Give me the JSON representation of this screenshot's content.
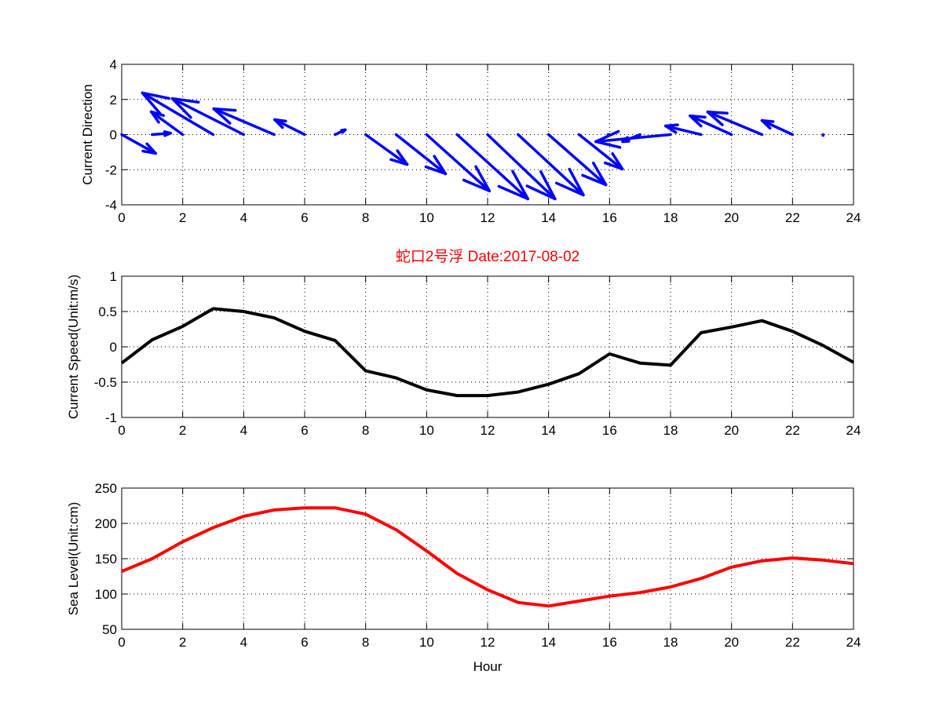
{
  "title": "蛇口2号浮   Date:2017-08-02",
  "colors": {
    "title": "#ff0000",
    "direction": "#0000ff",
    "speed": "#000000",
    "sea": "#ff0000"
  },
  "chart_data": [
    {
      "type": "quiver",
      "ylabel": "Current Direction",
      "xlim": [
        0,
        24
      ],
      "ylim": [
        -4,
        4
      ],
      "xticks": [
        "0",
        "2",
        "4",
        "6",
        "8",
        "10",
        "12",
        "14",
        "16",
        "18",
        "20",
        "22",
        "24"
      ],
      "yticks": [
        "4",
        "2",
        "0",
        "-2",
        "-4"
      ],
      "grid": true,
      "x": [
        0,
        1,
        2,
        3,
        4,
        5,
        6,
        7,
        8,
        9,
        10,
        11,
        12,
        13,
        14,
        15,
        16,
        17,
        18,
        19,
        20,
        21,
        22,
        23
      ],
      "u": [
        1.11,
        0.6,
        -1.03,
        -2.32,
        -2.34,
        -1.98,
        -0.98,
        0.33,
        1.36,
        1.62,
        2.06,
        2.32,
        2.21,
        2.14,
        1.88,
        1.42,
        -0.05,
        -0.57,
        -2.45,
        -1.16,
        -1.36,
        -1.78,
        -1.0,
        0.0
      ],
      "v": [
        -1.07,
        0.08,
        1.3,
        2.37,
        2.05,
        1.47,
        0.85,
        0.27,
        -1.7,
        -2.23,
        -3.21,
        -3.66,
        -3.66,
        -3.44,
        -2.86,
        -1.96,
        0.0,
        -0.4,
        -0.4,
        0.49,
        1.07,
        1.29,
        0.8,
        -0.05
      ]
    },
    {
      "type": "line",
      "ylabel": "Current Speed(Unit:m/s)",
      "xlim": [
        0,
        24
      ],
      "ylim": [
        -1,
        1
      ],
      "xticks": [
        "0",
        "2",
        "4",
        "6",
        "8",
        "10",
        "12",
        "14",
        "16",
        "18",
        "20",
        "22",
        "24"
      ],
      "yticks": [
        "1",
        "0.5",
        "0",
        "-0.5",
        "-1"
      ],
      "grid": true,
      "x": [
        0,
        1,
        2,
        3,
        4,
        5,
        6,
        7,
        8,
        9,
        10,
        11,
        12,
        13,
        14,
        15,
        16,
        17,
        18,
        19,
        20,
        21,
        22,
        23,
        24
      ],
      "y": [
        -0.23,
        0.1,
        0.29,
        0.54,
        0.5,
        0.41,
        0.22,
        0.09,
        -0.34,
        -0.44,
        -0.61,
        -0.69,
        -0.69,
        -0.64,
        -0.53,
        -0.38,
        -0.1,
        -0.23,
        -0.26,
        0.2,
        0.28,
        0.37,
        0.22,
        0.02,
        -0.22
      ]
    },
    {
      "type": "line",
      "ylabel": "Sea Level(Unit:cm)",
      "xlabel": "Hour",
      "xlim": [
        0,
        24
      ],
      "ylim": [
        50,
        250
      ],
      "xticks": [
        "0",
        "2",
        "4",
        "6",
        "8",
        "10",
        "12",
        "14",
        "16",
        "18",
        "20",
        "22",
        "24"
      ],
      "yticks": [
        "250",
        "200",
        "150",
        "100",
        "50"
      ],
      "grid": true,
      "x": [
        0,
        1,
        2,
        3,
        4,
        5,
        6,
        7,
        8,
        9,
        10,
        11,
        12,
        13,
        14,
        15,
        16,
        17,
        18,
        19,
        20,
        21,
        22,
        23,
        24
      ],
      "y": [
        132,
        150,
        174,
        194,
        210,
        219,
        222,
        222,
        213,
        191,
        161,
        129,
        106,
        88,
        83,
        90,
        97,
        102,
        110,
        122,
        138,
        147,
        151,
        148,
        143
      ]
    }
  ]
}
